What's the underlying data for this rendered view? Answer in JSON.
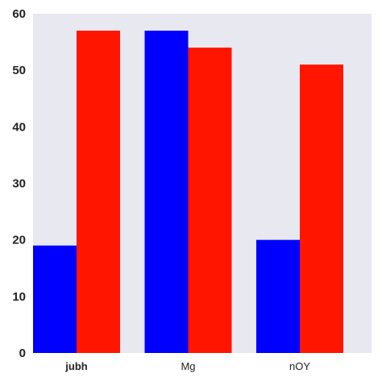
{
  "chart_data": {
    "type": "bar",
    "categories": [
      "jubh",
      "Mg",
      "nOY"
    ],
    "series": [
      {
        "color": "#0000ff",
        "values": [
          19,
          57,
          20
        ]
      },
      {
        "color": "#ff1500",
        "values": [
          57,
          54,
          51
        ]
      }
    ],
    "ylim": [
      0,
      60
    ],
    "yticks": [
      "0",
      "10",
      "20",
      "30",
      "40",
      "50",
      "60"
    ],
    "bold_category": "jubh",
    "grid": false,
    "background_color": "#e8e8f0",
    "title": "",
    "xlabel": "",
    "ylabel": ""
  }
}
